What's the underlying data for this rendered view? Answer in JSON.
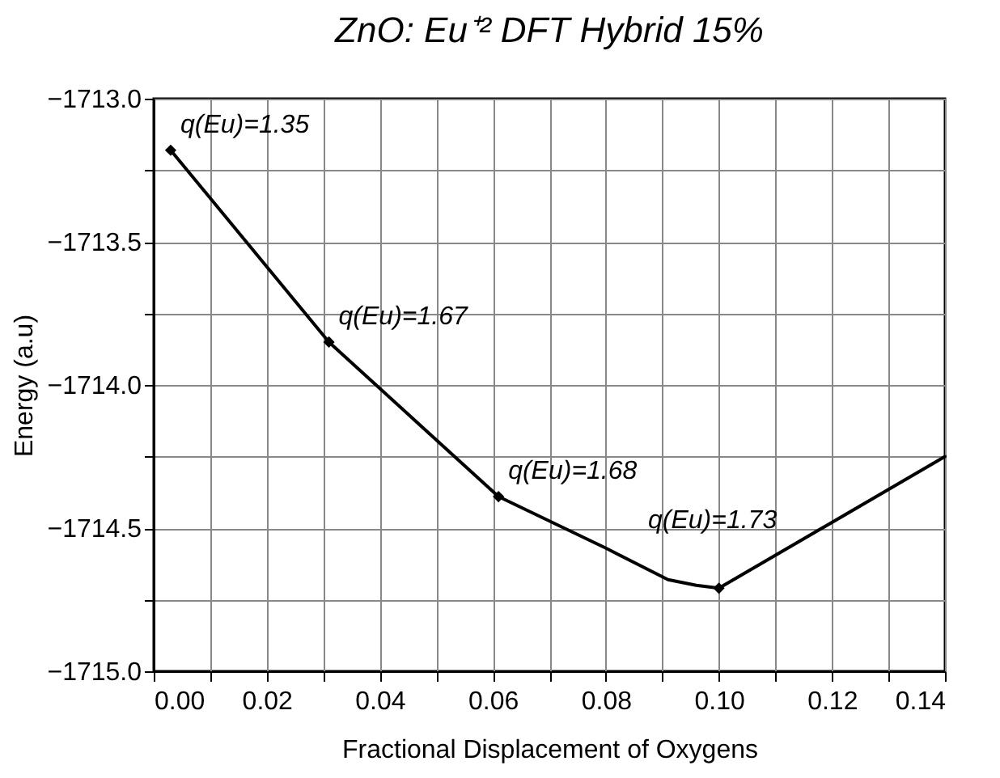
{
  "chart_data": {
    "type": "line",
    "title": "ZnO: Eu⁺² DFT Hybrid 15%",
    "xlabel": "Fractional Displacement of Oxygens",
    "ylabel": "Energy (a.u)",
    "series": [
      {
        "color": "#000000",
        "marker": "none",
        "x": [
          0.003,
          0.031,
          0.061,
          0.08,
          0.091,
          0.096,
          0.1,
          0.14
        ],
        "values": [
          -1713.18,
          -1713.85,
          -1714.39,
          -1714.57,
          -1714.68,
          -1714.7,
          -1714.71,
          -1714.25
        ]
      },
      {
        "type": "scatter",
        "color": "#000000",
        "marker": "diamond",
        "x": [
          0.003,
          0.031,
          0.061,
          0.1
        ],
        "values": [
          -1713.18,
          -1713.85,
          -1714.39,
          -1714.71
        ]
      }
    ],
    "annotations": [
      {
        "text": "q(Eu)=1.35",
        "x": 0.003,
        "y": -1713.18
      },
      {
        "text": "q(Eu)=1.67",
        "x": 0.031,
        "y": -1713.85
      },
      {
        "text": "q(Eu)=1.68",
        "x": 0.061,
        "y": -1714.39
      },
      {
        "text": "q(Eu)=1.73",
        "x": 0.1,
        "y": -1714.71
      }
    ],
    "xlim": [
      0,
      0.14
    ],
    "ylim": [
      -1715,
      -1713
    ],
    "xticks": [
      {
        "value": 0,
        "label": "0.00"
      },
      {
        "value": 0.01,
        "label": null
      },
      0.02,
      {
        "value": 0.03,
        "label": null
      },
      0.04,
      {
        "value": 0.05,
        "label": null
      },
      0.06,
      {
        "value": 0.07,
        "label": null
      },
      0.08,
      {
        "value": 0.09,
        "label": null
      },
      {
        "value": 0.1,
        "label": "0.10"
      },
      {
        "value": 0.11,
        "label": null
      },
      0.12,
      {
        "value": 0.13,
        "label": null
      },
      0.14
    ],
    "yticks": [
      {
        "value": -1715,
        "label": "−1715.0"
      },
      {
        "value": -1714.75,
        "label": null
      },
      {
        "value": -1714.5,
        "label": "−1714.5"
      },
      {
        "value": -1714.25,
        "label": null
      },
      {
        "value": -1714,
        "label": "−1714.0"
      },
      {
        "value": -1713.75,
        "label": null
      },
      {
        "value": -1713.5,
        "label": "−1713.5"
      },
      {
        "value": -1713.25,
        "label": null
      },
      {
        "value": -1713,
        "label": "−1713.0"
      }
    ],
    "grid": true
  }
}
